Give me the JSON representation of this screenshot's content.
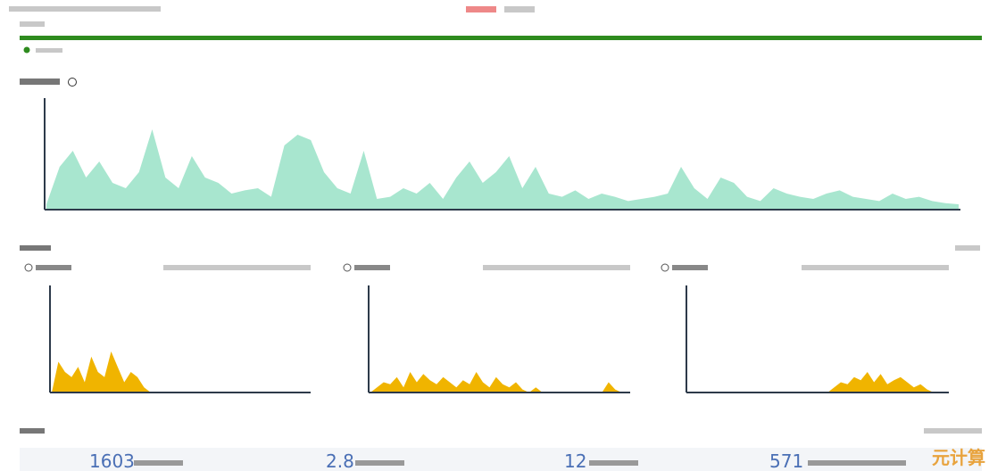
{
  "main_chart": {
    "type": "area",
    "color": "#a8e6cf",
    "ylim": [
      0,
      100
    ],
    "values": [
      5,
      40,
      55,
      30,
      45,
      25,
      20,
      35,
      75,
      30,
      20,
      50,
      30,
      25,
      15,
      18,
      20,
      12,
      60,
      70,
      65,
      35,
      20,
      15,
      55,
      10,
      12,
      20,
      15,
      25,
      10,
      30,
      45,
      25,
      35,
      50,
      20,
      40,
      15,
      12,
      18,
      10,
      15,
      12,
      8,
      10,
      12,
      15,
      40,
      20,
      10,
      30,
      25,
      12,
      8,
      20,
      15,
      12,
      10,
      15,
      18,
      12,
      10,
      8,
      15,
      10,
      12,
      8,
      6,
      5
    ]
  },
  "small_charts": [
    {
      "type": "area",
      "color": "#f0b400",
      "ylim": [
        0,
        100
      ],
      "values": [
        0,
        30,
        20,
        15,
        25,
        10,
        35,
        20,
        15,
        40,
        25,
        10,
        20,
        15,
        5,
        0,
        0,
        0,
        0,
        0,
        0,
        0,
        0,
        0,
        0,
        0,
        0,
        0,
        0,
        0,
        0,
        0,
        0,
        0,
        0,
        0,
        0,
        0,
        0,
        0
      ]
    },
    {
      "type": "area",
      "color": "#f0b400",
      "ylim": [
        0,
        100
      ],
      "values": [
        0,
        5,
        10,
        8,
        15,
        5,
        20,
        10,
        18,
        12,
        8,
        15,
        10,
        5,
        12,
        8,
        20,
        10,
        5,
        15,
        8,
        5,
        10,
        3,
        0,
        5,
        0,
        0,
        0,
        0,
        0,
        0,
        0,
        0,
        0,
        0,
        10,
        3,
        0,
        0
      ]
    },
    {
      "type": "area",
      "color": "#f0b400",
      "ylim": [
        0,
        100
      ],
      "values": [
        0,
        0,
        0,
        0,
        0,
        0,
        0,
        0,
        0,
        0,
        0,
        0,
        0,
        0,
        0,
        0,
        0,
        0,
        0,
        0,
        0,
        0,
        5,
        10,
        8,
        15,
        12,
        20,
        10,
        18,
        8,
        12,
        15,
        10,
        5,
        8,
        3,
        0,
        0,
        0
      ]
    }
  ],
  "stats": [
    {
      "value": "1603"
    },
    {
      "value": "2.8"
    },
    {
      "value": "12"
    },
    {
      "value": "571"
    }
  ],
  "watermark": "元计算"
}
